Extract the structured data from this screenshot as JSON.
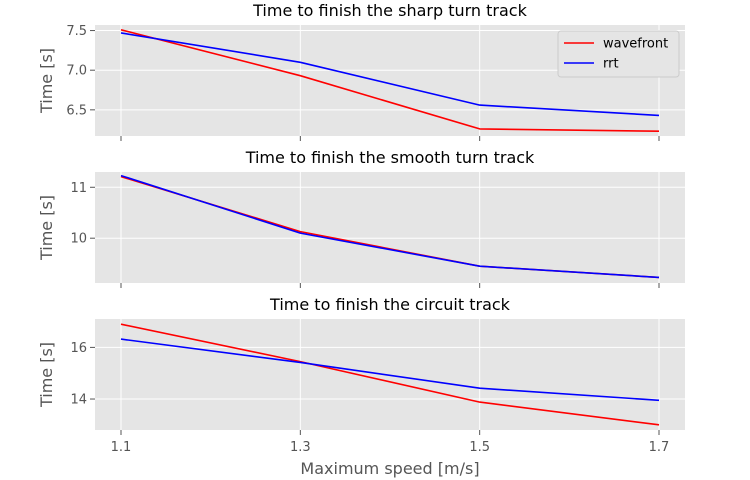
{
  "chart_data": [
    {
      "type": "line",
      "title": "Time to finish the sharp turn track",
      "xlabel": "",
      "ylabel": "Time [s]",
      "x": [
        1.1,
        1.3,
        1.5,
        1.7
      ],
      "ylim": [
        6.17,
        7.57
      ],
      "yticks": [
        "6.5",
        "7.0",
        "7.5"
      ],
      "ytick_values": [
        6.5,
        7.0,
        7.5
      ],
      "grid": true,
      "legend": "top-right",
      "series": [
        {
          "name": "wavefront",
          "color": "#ff0000",
          "values": [
            7.51,
            6.93,
            6.26,
            6.23
          ]
        },
        {
          "name": "rrt",
          "color": "#0000ff",
          "values": [
            7.47,
            7.1,
            6.56,
            6.43
          ]
        }
      ]
    },
    {
      "type": "line",
      "title": "Time to finish the smooth turn track",
      "xlabel": "",
      "ylabel": "Time [s]",
      "x": [
        1.1,
        1.3,
        1.5,
        1.7
      ],
      "ylim": [
        9.12,
        11.3
      ],
      "yticks": [
        "10",
        "11"
      ],
      "ytick_values": [
        10,
        11
      ],
      "grid": true,
      "series": [
        {
          "name": "wavefront",
          "color": "#ff0000",
          "values": [
            11.21,
            10.13,
            9.45,
            9.23
          ]
        },
        {
          "name": "rrt",
          "color": "#0000ff",
          "values": [
            11.23,
            10.1,
            9.45,
            9.23
          ]
        }
      ]
    },
    {
      "type": "line",
      "title": "Time to finish the circuit track",
      "xlabel": "Maximum speed [m/s]",
      "ylabel": "Time [s]",
      "x": [
        1.1,
        1.3,
        1.5,
        1.7
      ],
      "xticks": [
        "1.1",
        "1.3",
        "1.5",
        "1.7"
      ],
      "ylim": [
        12.8,
        17.1
      ],
      "yticks": [
        "14",
        "16"
      ],
      "ytick_values": [
        14,
        16
      ],
      "grid": true,
      "series": [
        {
          "name": "wavefront",
          "color": "#ff0000",
          "values": [
            16.9,
            15.45,
            13.88,
            13.0
          ]
        },
        {
          "name": "rrt",
          "color": "#0000ff",
          "values": [
            16.32,
            15.42,
            14.42,
            13.95
          ]
        }
      ]
    }
  ]
}
